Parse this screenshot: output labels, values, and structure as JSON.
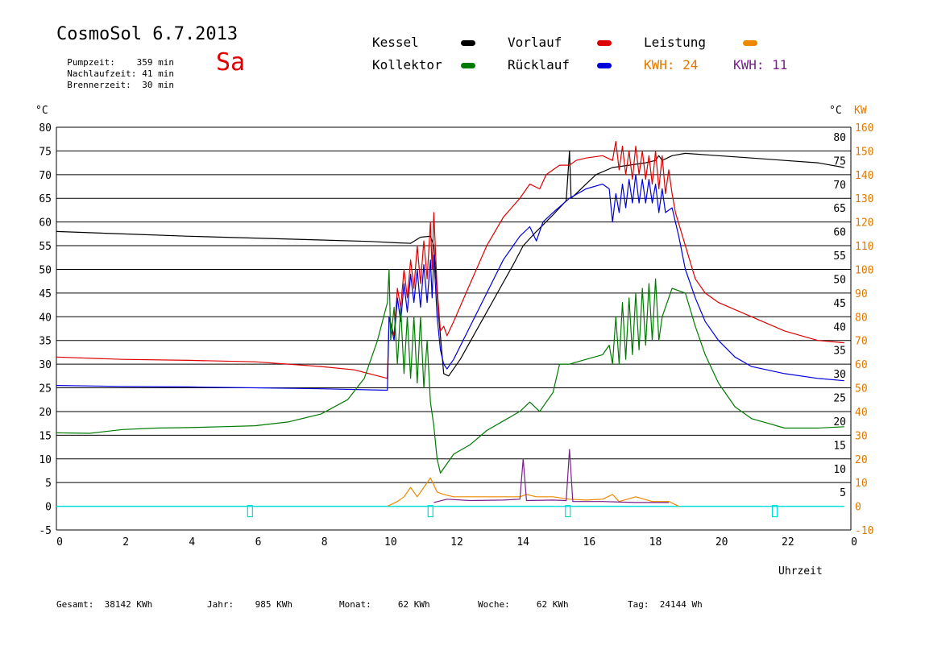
{
  "header": {
    "title": "CosmoSol 6.7.2013",
    "day": "Sa",
    "stats": [
      {
        "label": "Pumpzeit:",
        "value": "359 min"
      },
      {
        "label": "Nachlaufzeit:",
        "value": "41 min"
      },
      {
        "label": "Brennerzeit:",
        "value": "30 min"
      }
    ]
  },
  "legend": {
    "kessel": "Kessel",
    "kollektor": "Kollektor",
    "vorlauf": "Vorlauf",
    "ruecklauf": "Rücklauf",
    "leistung": "Leistung",
    "kwh1": "KWH: 24",
    "kwh2": "KWH: 11"
  },
  "colors": {
    "kessel": "#000000",
    "kollektor": "#007a00",
    "vorlauf": "#dd0000",
    "ruecklauf": "#0000dd",
    "leistung": "#ee8800",
    "kwh2": "#7a1f8a",
    "zero_line": "#00dddd",
    "axis_right": "#e07800"
  },
  "footer": {
    "gesamt_label": "Gesamt:",
    "gesamt_value": "38142 KWh",
    "jahr_label": "Jahr:",
    "jahr_value": "985 KWh",
    "monat_label": "Monat:",
    "monat_value": "62 KWh",
    "woche_label": "Woche:",
    "woche_value": "62 KWh",
    "tag_label": "Tag:",
    "tag_value": "24144 Wh"
  },
  "chart_data": {
    "type": "line",
    "xlabel": "Uhrzeit",
    "ylabel_left": "°C",
    "ylabel_right_1": "°C",
    "ylabel_right_2": "KW",
    "xlim": [
      0,
      24
    ],
    "ylim": [
      -5,
      80
    ],
    "grid": true,
    "x_ticks": [
      "0",
      "2",
      "4",
      "6",
      "8",
      "10",
      "12",
      "14",
      "16",
      "18",
      "20",
      "22",
      "0"
    ],
    "y_ticks_left": [
      "-5",
      "0",
      "5",
      "10",
      "15",
      "20",
      "25",
      "30",
      "35",
      "40",
      "45",
      "50",
      "55",
      "60",
      "65",
      "70",
      "75",
      "80"
    ],
    "y_ticks_right_temp": [
      "5",
      "10",
      "15",
      "20",
      "25",
      "30",
      "35",
      "40",
      "45",
      "50",
      "55",
      "60",
      "65",
      "70",
      "75",
      "80"
    ],
    "y_ticks_right_kw": [
      "-10",
      "0",
      "10",
      "20",
      "30",
      "40",
      "50",
      "60",
      "70",
      "80",
      "90",
      "100",
      "110",
      "120",
      "130",
      "140",
      "150",
      "160"
    ],
    "series": [
      {
        "name": "Kessel",
        "color": "#000000",
        "points": [
          [
            0,
            58
          ],
          [
            2,
            57.5
          ],
          [
            4,
            57
          ],
          [
            6,
            56.6
          ],
          [
            8,
            56.2
          ],
          [
            9.5,
            55.9
          ],
          [
            10.3,
            55.6
          ],
          [
            10.7,
            55.5
          ],
          [
            11,
            56.8
          ],
          [
            11.3,
            57
          ],
          [
            11.4,
            55
          ],
          [
            11.55,
            40
          ],
          [
            11.7,
            28
          ],
          [
            11.85,
            27.5
          ],
          [
            12.2,
            31
          ],
          [
            12.6,
            36
          ],
          [
            13,
            41
          ],
          [
            13.4,
            46
          ],
          [
            13.8,
            51
          ],
          [
            14.1,
            55
          ],
          [
            14.5,
            58
          ],
          [
            15,
            61.5
          ],
          [
            15.4,
            64.5
          ],
          [
            15.5,
            75
          ],
          [
            15.55,
            65
          ],
          [
            15.7,
            66
          ],
          [
            16,
            68
          ],
          [
            16.3,
            70
          ],
          [
            16.8,
            71.5
          ],
          [
            17.3,
            72
          ],
          [
            17.8,
            72.5
          ],
          [
            18.1,
            73
          ],
          [
            18.2,
            74
          ],
          [
            18.3,
            73
          ],
          [
            18.6,
            74
          ],
          [
            19,
            74.5
          ],
          [
            20,
            74
          ],
          [
            21,
            73.5
          ],
          [
            22,
            73
          ],
          [
            23,
            72.5
          ],
          [
            23.8,
            71.5
          ]
        ]
      },
      {
        "name": "Vorlauf",
        "color": "#dd0000",
        "points": [
          [
            0,
            31.5
          ],
          [
            2,
            31
          ],
          [
            4,
            30.8
          ],
          [
            6,
            30.5
          ],
          [
            8,
            29.5
          ],
          [
            9,
            28.8
          ],
          [
            10,
            27
          ],
          [
            10.05,
            40
          ],
          [
            10.2,
            36
          ],
          [
            10.3,
            46
          ],
          [
            10.4,
            42
          ],
          [
            10.5,
            50
          ],
          [
            10.6,
            44
          ],
          [
            10.7,
            52
          ],
          [
            10.8,
            46
          ],
          [
            10.9,
            55
          ],
          [
            11,
            47
          ],
          [
            11.1,
            56
          ],
          [
            11.2,
            48
          ],
          [
            11.3,
            60
          ],
          [
            11.35,
            50
          ],
          [
            11.4,
            62
          ],
          [
            11.5,
            46
          ],
          [
            11.6,
            37
          ],
          [
            11.7,
            38
          ],
          [
            11.8,
            36
          ],
          [
            12,
            39
          ],
          [
            12.5,
            47
          ],
          [
            13,
            55
          ],
          [
            13.5,
            61
          ],
          [
            14,
            65
          ],
          [
            14.3,
            68
          ],
          [
            14.6,
            67
          ],
          [
            14.8,
            70
          ],
          [
            15,
            71
          ],
          [
            15.2,
            72
          ],
          [
            15.5,
            72
          ],
          [
            15.7,
            73
          ],
          [
            16,
            73.5
          ],
          [
            16.5,
            74
          ],
          [
            16.8,
            73
          ],
          [
            16.9,
            77
          ],
          [
            17,
            71
          ],
          [
            17.1,
            76
          ],
          [
            17.2,
            70
          ],
          [
            17.3,
            75
          ],
          [
            17.4,
            69
          ],
          [
            17.5,
            76
          ],
          [
            17.6,
            70
          ],
          [
            17.7,
            75
          ],
          [
            17.8,
            69
          ],
          [
            17.9,
            74
          ],
          [
            18,
            68
          ],
          [
            18.1,
            75
          ],
          [
            18.2,
            67
          ],
          [
            18.3,
            74
          ],
          [
            18.4,
            66
          ],
          [
            18.5,
            71
          ],
          [
            18.6,
            66
          ],
          [
            18.7,
            62
          ],
          [
            19,
            55
          ],
          [
            19.3,
            48
          ],
          [
            19.6,
            45
          ],
          [
            20,
            43
          ],
          [
            21,
            40
          ],
          [
            22,
            37
          ],
          [
            23,
            35
          ],
          [
            23.8,
            34.5
          ]
        ]
      },
      {
        "name": "Rücklauf",
        "color": "#0000dd",
        "points": [
          [
            0,
            25.5
          ],
          [
            2,
            25.3
          ],
          [
            4,
            25.2
          ],
          [
            6,
            25
          ],
          [
            8,
            24.8
          ],
          [
            10,
            24.5
          ],
          [
            10.05,
            40
          ],
          [
            10.2,
            35
          ],
          [
            10.3,
            44
          ],
          [
            10.4,
            39
          ],
          [
            10.5,
            47
          ],
          [
            10.6,
            41
          ],
          [
            10.7,
            49
          ],
          [
            10.8,
            43
          ],
          [
            10.9,
            50
          ],
          [
            11,
            42
          ],
          [
            11.1,
            51
          ],
          [
            11.2,
            43
          ],
          [
            11.3,
            52
          ],
          [
            11.35,
            44
          ],
          [
            11.4,
            53
          ],
          [
            11.5,
            40
          ],
          [
            11.6,
            33
          ],
          [
            11.7,
            30
          ],
          [
            11.8,
            29
          ],
          [
            12,
            31
          ],
          [
            12.5,
            38
          ],
          [
            13,
            45
          ],
          [
            13.5,
            52
          ],
          [
            14,
            57
          ],
          [
            14.3,
            59
          ],
          [
            14.5,
            56
          ],
          [
            14.7,
            60
          ],
          [
            15,
            62
          ],
          [
            15.5,
            65
          ],
          [
            16,
            67
          ],
          [
            16.5,
            68
          ],
          [
            16.7,
            67
          ],
          [
            16.8,
            60
          ],
          [
            16.9,
            66
          ],
          [
            17,
            62
          ],
          [
            17.1,
            68
          ],
          [
            17.2,
            63
          ],
          [
            17.3,
            69
          ],
          [
            17.4,
            64
          ],
          [
            17.5,
            70
          ],
          [
            17.6,
            64
          ],
          [
            17.7,
            69
          ],
          [
            17.8,
            64
          ],
          [
            17.9,
            69
          ],
          [
            18,
            64
          ],
          [
            18.1,
            68
          ],
          [
            18.2,
            62
          ],
          [
            18.3,
            67
          ],
          [
            18.4,
            62
          ],
          [
            18.6,
            63
          ],
          [
            18.8,
            57
          ],
          [
            19,
            50
          ],
          [
            19.3,
            44
          ],
          [
            19.6,
            39
          ],
          [
            20,
            35
          ],
          [
            20.5,
            31.5
          ],
          [
            21,
            29.5
          ],
          [
            22,
            28
          ],
          [
            23,
            27
          ],
          [
            23.8,
            26.5
          ]
        ]
      },
      {
        "name": "Kollektor",
        "color": "#007a00",
        "points": [
          [
            0,
            15.5
          ],
          [
            1,
            15.4
          ],
          [
            2,
            16.2
          ],
          [
            3,
            16.5
          ],
          [
            4,
            16.6
          ],
          [
            5,
            16.8
          ],
          [
            6,
            17
          ],
          [
            7,
            17.8
          ],
          [
            8,
            19.5
          ],
          [
            8.8,
            22.5
          ],
          [
            9.3,
            27
          ],
          [
            9.7,
            35
          ],
          [
            10,
            43
          ],
          [
            10.05,
            50
          ],
          [
            10.1,
            35
          ],
          [
            10.2,
            42
          ],
          [
            10.3,
            30
          ],
          [
            10.4,
            42
          ],
          [
            10.5,
            28
          ],
          [
            10.6,
            40
          ],
          [
            10.7,
            27
          ],
          [
            10.8,
            40
          ],
          [
            10.9,
            26
          ],
          [
            11,
            40
          ],
          [
            11.1,
            25
          ],
          [
            11.2,
            35
          ],
          [
            11.3,
            22
          ],
          [
            11.4,
            17
          ],
          [
            11.5,
            10
          ],
          [
            11.6,
            7
          ],
          [
            11.8,
            9
          ],
          [
            12,
            11
          ],
          [
            12.5,
            13
          ],
          [
            13,
            16
          ],
          [
            13.5,
            18
          ],
          [
            14,
            20
          ],
          [
            14.3,
            22
          ],
          [
            14.6,
            20
          ],
          [
            14.8,
            22
          ],
          [
            15,
            24
          ],
          [
            15.2,
            30
          ],
          [
            15.5,
            30
          ],
          [
            16,
            31
          ],
          [
            16.5,
            32
          ],
          [
            16.7,
            34
          ],
          [
            16.8,
            30
          ],
          [
            16.9,
            40
          ],
          [
            17,
            30
          ],
          [
            17.1,
            43
          ],
          [
            17.2,
            31
          ],
          [
            17.3,
            44
          ],
          [
            17.4,
            32
          ],
          [
            17.5,
            45
          ],
          [
            17.6,
            33
          ],
          [
            17.7,
            46
          ],
          [
            17.8,
            34
          ],
          [
            17.9,
            47
          ],
          [
            18,
            35
          ],
          [
            18.1,
            48
          ],
          [
            18.2,
            35
          ],
          [
            18.3,
            40
          ],
          [
            18.6,
            46
          ],
          [
            19,
            45
          ],
          [
            19.3,
            38
          ],
          [
            19.6,
            32
          ],
          [
            20,
            26
          ],
          [
            20.5,
            21
          ],
          [
            21,
            18.5
          ],
          [
            21.5,
            17.5
          ],
          [
            22,
            16.5
          ],
          [
            23,
            16.5
          ],
          [
            23.8,
            16.8
          ]
        ]
      },
      {
        "name": "Leistung",
        "color": "#ee8800",
        "points": [
          [
            10,
            0
          ],
          [
            10.3,
            1
          ],
          [
            10.5,
            2
          ],
          [
            10.7,
            4
          ],
          [
            10.9,
            2
          ],
          [
            11.1,
            4
          ],
          [
            11.3,
            6
          ],
          [
            11.5,
            3
          ],
          [
            11.7,
            2.5
          ],
          [
            12,
            2
          ],
          [
            13,
            2
          ],
          [
            14,
            2
          ],
          [
            14.2,
            2.5
          ],
          [
            14.5,
            2
          ],
          [
            15,
            2
          ],
          [
            15.5,
            1.5
          ],
          [
            16,
            1.3
          ],
          [
            16.5,
            1.5
          ],
          [
            16.8,
            2.5
          ],
          [
            17,
            1
          ],
          [
            17.5,
            2
          ],
          [
            18,
            1
          ],
          [
            18.5,
            1
          ],
          [
            18.8,
            0
          ]
        ]
      },
      {
        "name": "KWH",
        "color": "#7a1f8a",
        "points": [
          [
            11.4,
            0.8
          ],
          [
            11.8,
            1.5
          ],
          [
            12.5,
            1.2
          ],
          [
            13.5,
            1.3
          ],
          [
            14,
            1.5
          ],
          [
            14.1,
            10
          ],
          [
            14.2,
            1.2
          ],
          [
            15,
            1.3
          ],
          [
            15.4,
            1.2
          ],
          [
            15.5,
            12
          ],
          [
            15.6,
            1
          ],
          [
            16.5,
            1
          ],
          [
            17.5,
            0.8
          ],
          [
            18.5,
            0.8
          ]
        ]
      }
    ]
  }
}
